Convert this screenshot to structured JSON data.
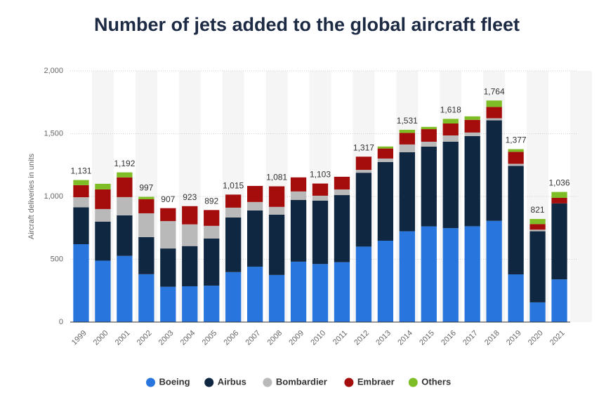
{
  "chart_data": {
    "type": "stacked-bar",
    "title": "Number of jets added to the global aircraft fleet",
    "y_label": "Aircraft deliveries in units",
    "categories": [
      "1999",
      "2000",
      "2001",
      "2002",
      "2003",
      "2004",
      "2005",
      "2006",
      "2007",
      "2008",
      "2009",
      "2010",
      "2011",
      "2012",
      "2013",
      "2014",
      "2015",
      "2016",
      "2017",
      "2018",
      "2019",
      "2020",
      "2021"
    ],
    "series": [
      {
        "name": "Boeing",
        "color": "#2876dd",
        "values": [
          620,
          489,
          527,
          381,
          281,
          285,
          290,
          398,
          441,
          375,
          481,
          462,
          477,
          601,
          648,
          723,
          762,
          748,
          763,
          806,
          380,
          157,
          340
        ]
      },
      {
        "name": "Airbus",
        "color": "#0f2741",
        "values": [
          294,
          311,
          323,
          295,
          305,
          320,
          375,
          435,
          448,
          480,
          491,
          505,
          534,
          588,
          626,
          629,
          635,
          688,
          718,
          800,
          863,
          566,
          605
        ]
      },
      {
        "name": "Bombardier",
        "color": "#b9b9b9",
        "values": [
          80,
          100,
          145,
          190,
          218,
          173,
          101,
          78,
          67,
          62,
          68,
          39,
          45,
          23,
          28,
          62,
          39,
          50,
          28,
          17,
          17,
          13,
          0
        ]
      },
      {
        "name": "Embraer",
        "color": "#a50d0d",
        "values": [
          96,
          156,
          157,
          112,
          103,
          145,
          126,
          104,
          128,
          164,
          112,
          97,
          101,
          105,
          80,
          92,
          100,
          95,
          101,
          90,
          95,
          44,
          44
        ]
      },
      {
        "name": "Others",
        "color": "#7fbd27",
        "values": [
          41,
          45,
          40,
          19,
          0,
          0,
          0,
          0,
          0,
          0,
          0,
          0,
          0,
          0,
          16,
          25,
          18,
          37,
          28,
          51,
          22,
          41,
          47
        ]
      }
    ],
    "totals": [
      1131,
      null,
      1192,
      997,
      907,
      923,
      892,
      1015,
      null,
      1081,
      null,
      1103,
      null,
      1317,
      null,
      1531,
      null,
      1618,
      null,
      1764,
      1377,
      821,
      1036
    ],
    "total_labels": [
      "1,131",
      null,
      "1,192",
      "997",
      "907",
      "923",
      "892",
      "1,015",
      null,
      "1,081",
      null,
      "1,103",
      null,
      "1,317",
      null,
      "1,531",
      null,
      "1,618",
      null,
      "1,764",
      "1,377",
      "821",
      "1,036"
    ],
    "ylim": [
      0,
      2000
    ],
    "yticks": [
      0,
      500,
      {
        "value": 1000,
        "label": "1,000"
      },
      {
        "value": 1500,
        "label": "1,500"
      },
      {
        "value": 2000,
        "label": "2,000"
      }
    ],
    "grid": true
  }
}
